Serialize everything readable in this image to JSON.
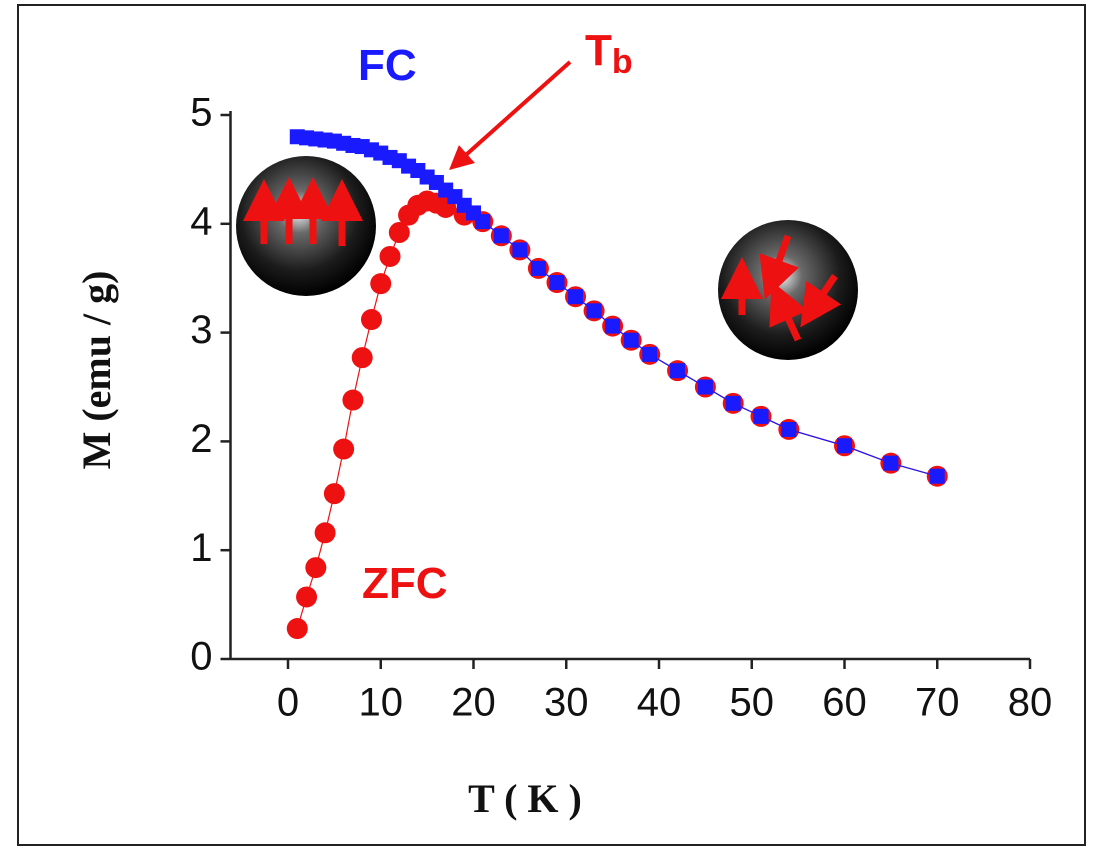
{
  "chart_data": {
    "type": "scatter",
    "xlabel": "T ( K )",
    "ylabel": "M (emu / g)",
    "xlim": [
      -6.2,
      80
    ],
    "ylim": [
      0,
      5
    ],
    "xticks": [
      0,
      10,
      20,
      30,
      40,
      50,
      60,
      70,
      80
    ],
    "yticks": [
      0,
      1,
      2,
      3,
      4,
      5
    ],
    "annotations": [
      {
        "text": "FC",
        "color": "#1a1aff"
      },
      {
        "text": "ZFC",
        "color": "#ee1111"
      },
      {
        "text": "T",
        "subscript": "b",
        "color": "#ee1111"
      }
    ],
    "series": [
      {
        "name": "ZFC",
        "color": "#ee1111",
        "marker": "circle",
        "x": [
          1,
          2,
          3,
          4,
          5,
          6,
          7,
          8,
          9,
          10,
          11,
          12,
          13,
          14,
          15,
          16,
          17,
          19,
          21,
          23,
          25,
          27,
          29,
          31,
          33,
          35,
          37,
          39,
          42,
          45,
          48,
          51,
          54,
          60,
          65,
          70
        ],
        "values": [
          0.28,
          0.57,
          0.84,
          1.16,
          1.52,
          1.93,
          2.38,
          2.77,
          3.12,
          3.45,
          3.7,
          3.92,
          4.08,
          4.17,
          4.21,
          4.19,
          4.15,
          4.08,
          4.02,
          3.89,
          3.76,
          3.59,
          3.46,
          3.33,
          3.2,
          3.06,
          2.93,
          2.8,
          2.65,
          2.5,
          2.35,
          2.23,
          2.11,
          1.96,
          1.8,
          1.68
        ]
      },
      {
        "name": "FC",
        "color": "#1a1aff",
        "marker": "square",
        "x": [
          1,
          2,
          3,
          4,
          5,
          6,
          7,
          8,
          9,
          10,
          11,
          12,
          13,
          14,
          15,
          16,
          17,
          18,
          19,
          20,
          21,
          23,
          25,
          27,
          29,
          31,
          33,
          35,
          37,
          39,
          42,
          45,
          48,
          51,
          54,
          60,
          65,
          70
        ],
        "values": [
          4.8,
          4.79,
          4.78,
          4.77,
          4.76,
          4.74,
          4.72,
          4.71,
          4.68,
          4.65,
          4.61,
          4.58,
          4.53,
          4.49,
          4.43,
          4.38,
          4.31,
          4.25,
          4.17,
          4.1,
          4.02,
          3.89,
          3.76,
          3.59,
          3.46,
          3.33,
          3.2,
          3.06,
          2.93,
          2.8,
          2.65,
          2.5,
          2.35,
          2.23,
          2.11,
          1.96,
          1.8,
          1.68
        ]
      }
    ]
  }
}
